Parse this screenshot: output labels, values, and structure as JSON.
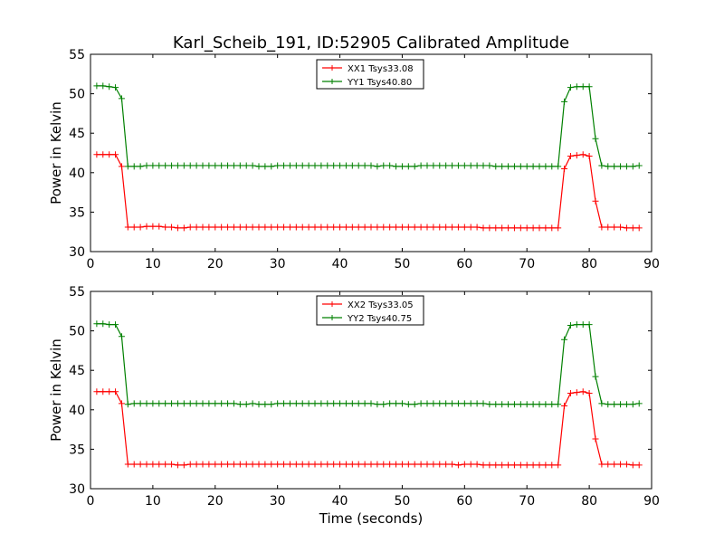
{
  "figure": {
    "title": "Karl_Scheib_191, ID:52905 Calibrated Amplitude",
    "xlabel": "Time (seconds)"
  },
  "chart_data": [
    {
      "type": "line",
      "ylabel": "Power in Kelvin",
      "xlim": [
        0,
        90
      ],
      "ylim": [
        30,
        55
      ],
      "xticks": [
        0,
        10,
        20,
        30,
        40,
        50,
        60,
        70,
        80,
        90
      ],
      "yticks": [
        30,
        35,
        40,
        45,
        50,
        55
      ],
      "grid": false,
      "legend_position": "top-center",
      "series": [
        {
          "name": "XX1 Tsys33.08",
          "color": "#ff0000",
          "marker": "plus",
          "x": [
            1,
            2,
            3,
            4,
            5,
            6,
            7,
            8,
            9,
            10,
            11,
            12,
            13,
            14,
            15,
            16,
            17,
            18,
            19,
            20,
            21,
            22,
            23,
            24,
            25,
            26,
            27,
            28,
            29,
            30,
            31,
            32,
            33,
            34,
            35,
            36,
            37,
            38,
            39,
            40,
            41,
            42,
            43,
            44,
            45,
            46,
            47,
            48,
            49,
            50,
            51,
            52,
            53,
            54,
            55,
            56,
            57,
            58,
            59,
            60,
            61,
            62,
            63,
            64,
            65,
            66,
            67,
            68,
            69,
            70,
            71,
            72,
            73,
            74,
            75,
            76,
            77,
            78,
            79,
            80,
            81,
            82,
            83,
            84,
            85,
            86,
            87,
            88
          ],
          "y": [
            42.3,
            42.3,
            42.3,
            42.3,
            40.8,
            33.1,
            33.1,
            33.1,
            33.2,
            33.2,
            33.2,
            33.1,
            33.1,
            33.0,
            33.0,
            33.1,
            33.1,
            33.1,
            33.1,
            33.1,
            33.1,
            33.1,
            33.1,
            33.1,
            33.1,
            33.1,
            33.1,
            33.1,
            33.1,
            33.1,
            33.1,
            33.1,
            33.1,
            33.1,
            33.1,
            33.1,
            33.1,
            33.1,
            33.1,
            33.1,
            33.1,
            33.1,
            33.1,
            33.1,
            33.1,
            33.1,
            33.1,
            33.1,
            33.1,
            33.1,
            33.1,
            33.1,
            33.1,
            33.1,
            33.1,
            33.1,
            33.1,
            33.1,
            33.1,
            33.1,
            33.1,
            33.1,
            33.0,
            33.0,
            33.0,
            33.0,
            33.0,
            33.0,
            33.0,
            33.0,
            33.0,
            33.0,
            33.0,
            33.0,
            33.0,
            40.5,
            42.1,
            42.2,
            42.3,
            42.1,
            36.4,
            33.1,
            33.1,
            33.1,
            33.1,
            33.0,
            33.0,
            33.0
          ]
        },
        {
          "name": "YY1 Tsys40.80",
          "color": "#008000",
          "marker": "plus",
          "x": [
            1,
            2,
            3,
            4,
            5,
            6,
            7,
            8,
            9,
            10,
            11,
            12,
            13,
            14,
            15,
            16,
            17,
            18,
            19,
            20,
            21,
            22,
            23,
            24,
            25,
            26,
            27,
            28,
            29,
            30,
            31,
            32,
            33,
            34,
            35,
            36,
            37,
            38,
            39,
            40,
            41,
            42,
            43,
            44,
            45,
            46,
            47,
            48,
            49,
            50,
            51,
            52,
            53,
            54,
            55,
            56,
            57,
            58,
            59,
            60,
            61,
            62,
            63,
            64,
            65,
            66,
            67,
            68,
            69,
            70,
            71,
            72,
            73,
            74,
            75,
            76,
            77,
            78,
            79,
            80,
            81,
            82,
            83,
            84,
            85,
            86,
            87,
            88
          ],
          "y": [
            51.0,
            51.0,
            50.9,
            50.8,
            49.4,
            40.8,
            40.8,
            40.8,
            40.9,
            40.9,
            40.9,
            40.9,
            40.9,
            40.9,
            40.9,
            40.9,
            40.9,
            40.9,
            40.9,
            40.9,
            40.9,
            40.9,
            40.9,
            40.9,
            40.9,
            40.9,
            40.8,
            40.8,
            40.8,
            40.9,
            40.9,
            40.9,
            40.9,
            40.9,
            40.9,
            40.9,
            40.9,
            40.9,
            40.9,
            40.9,
            40.9,
            40.9,
            40.9,
            40.9,
            40.9,
            40.8,
            40.9,
            40.9,
            40.8,
            40.8,
            40.8,
            40.8,
            40.9,
            40.9,
            40.9,
            40.9,
            40.9,
            40.9,
            40.9,
            40.9,
            40.9,
            40.9,
            40.9,
            40.9,
            40.8,
            40.8,
            40.8,
            40.8,
            40.8,
            40.8,
            40.8,
            40.8,
            40.8,
            40.8,
            40.8,
            49.0,
            50.8,
            50.9,
            50.9,
            50.9,
            44.3,
            40.9,
            40.8,
            40.8,
            40.8,
            40.8,
            40.8,
            40.9
          ]
        }
      ]
    },
    {
      "type": "line",
      "ylabel": "Power in Kelvin",
      "xlabel": "Time (seconds)",
      "xlim": [
        0,
        90
      ],
      "ylim": [
        30,
        55
      ],
      "xticks": [
        0,
        10,
        20,
        30,
        40,
        50,
        60,
        70,
        80,
        90
      ],
      "yticks": [
        30,
        35,
        40,
        45,
        50,
        55
      ],
      "grid": false,
      "legend_position": "top-center",
      "series": [
        {
          "name": "XX2 Tsys33.05",
          "color": "#ff0000",
          "marker": "plus",
          "x": [
            1,
            2,
            3,
            4,
            5,
            6,
            7,
            8,
            9,
            10,
            11,
            12,
            13,
            14,
            15,
            16,
            17,
            18,
            19,
            20,
            21,
            22,
            23,
            24,
            25,
            26,
            27,
            28,
            29,
            30,
            31,
            32,
            33,
            34,
            35,
            36,
            37,
            38,
            39,
            40,
            41,
            42,
            43,
            44,
            45,
            46,
            47,
            48,
            49,
            50,
            51,
            52,
            53,
            54,
            55,
            56,
            57,
            58,
            59,
            60,
            61,
            62,
            63,
            64,
            65,
            66,
            67,
            68,
            69,
            70,
            71,
            72,
            73,
            74,
            75,
            76,
            77,
            78,
            79,
            80,
            81,
            82,
            83,
            84,
            85,
            86,
            87,
            88
          ],
          "y": [
            42.3,
            42.3,
            42.3,
            42.3,
            40.8,
            33.1,
            33.1,
            33.1,
            33.1,
            33.1,
            33.1,
            33.1,
            33.1,
            33.0,
            33.0,
            33.1,
            33.1,
            33.1,
            33.1,
            33.1,
            33.1,
            33.1,
            33.1,
            33.1,
            33.1,
            33.1,
            33.1,
            33.1,
            33.1,
            33.1,
            33.1,
            33.1,
            33.1,
            33.1,
            33.1,
            33.1,
            33.1,
            33.1,
            33.1,
            33.1,
            33.1,
            33.1,
            33.1,
            33.1,
            33.1,
            33.1,
            33.1,
            33.1,
            33.1,
            33.1,
            33.1,
            33.1,
            33.1,
            33.1,
            33.1,
            33.1,
            33.1,
            33.1,
            33.0,
            33.1,
            33.1,
            33.1,
            33.0,
            33.0,
            33.0,
            33.0,
            33.0,
            33.0,
            33.0,
            33.0,
            33.0,
            33.0,
            33.0,
            33.0,
            33.0,
            40.5,
            42.1,
            42.2,
            42.3,
            42.1,
            36.3,
            33.1,
            33.1,
            33.1,
            33.1,
            33.1,
            33.0,
            33.0
          ]
        },
        {
          "name": "YY2 Tsys40.75",
          "color": "#008000",
          "marker": "plus",
          "x": [
            1,
            2,
            3,
            4,
            5,
            6,
            7,
            8,
            9,
            10,
            11,
            12,
            13,
            14,
            15,
            16,
            17,
            18,
            19,
            20,
            21,
            22,
            23,
            24,
            25,
            26,
            27,
            28,
            29,
            30,
            31,
            32,
            33,
            34,
            35,
            36,
            37,
            38,
            39,
            40,
            41,
            42,
            43,
            44,
            45,
            46,
            47,
            48,
            49,
            50,
            51,
            52,
            53,
            54,
            55,
            56,
            57,
            58,
            59,
            60,
            61,
            62,
            63,
            64,
            65,
            66,
            67,
            68,
            69,
            70,
            71,
            72,
            73,
            74,
            75,
            76,
            77,
            78,
            79,
            80,
            81,
            82,
            83,
            84,
            85,
            86,
            87,
            88
          ],
          "y": [
            50.9,
            50.9,
            50.8,
            50.8,
            49.3,
            40.7,
            40.8,
            40.8,
            40.8,
            40.8,
            40.8,
            40.8,
            40.8,
            40.8,
            40.8,
            40.8,
            40.8,
            40.8,
            40.8,
            40.8,
            40.8,
            40.8,
            40.8,
            40.7,
            40.7,
            40.8,
            40.7,
            40.7,
            40.7,
            40.8,
            40.8,
            40.8,
            40.8,
            40.8,
            40.8,
            40.8,
            40.8,
            40.8,
            40.8,
            40.8,
            40.8,
            40.8,
            40.8,
            40.8,
            40.8,
            40.7,
            40.7,
            40.8,
            40.8,
            40.8,
            40.7,
            40.7,
            40.8,
            40.8,
            40.8,
            40.8,
            40.8,
            40.8,
            40.8,
            40.8,
            40.8,
            40.8,
            40.8,
            40.7,
            40.7,
            40.7,
            40.7,
            40.7,
            40.7,
            40.7,
            40.7,
            40.7,
            40.7,
            40.7,
            40.7,
            48.9,
            50.7,
            50.8,
            50.8,
            50.8,
            44.2,
            40.8,
            40.7,
            40.7,
            40.7,
            40.7,
            40.7,
            40.8
          ]
        }
      ]
    }
  ]
}
